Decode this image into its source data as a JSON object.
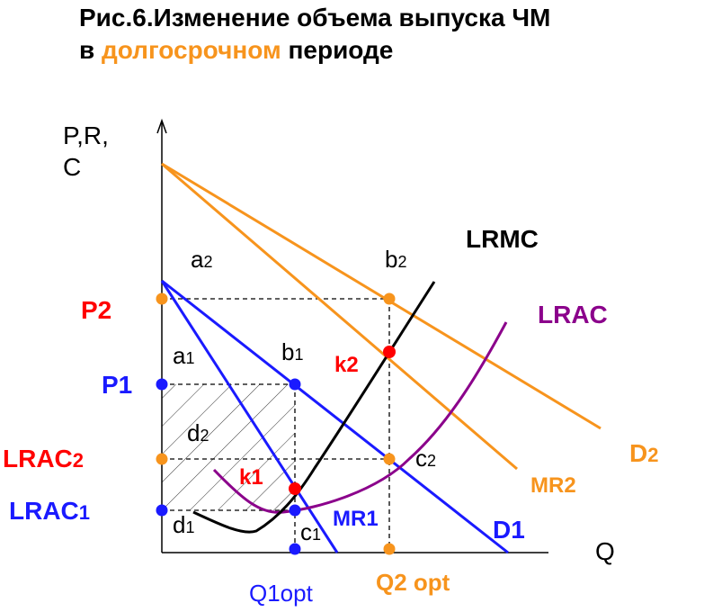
{
  "title": {
    "line1": "Рис.6.Изменение  объема выпуска ЧМ",
    "line2_prefix": "в ",
    "line2_accent": "долгосрочном",
    "line2_suffix": " периоде"
  },
  "axes": {
    "y_label_line1": "P,R,",
    "y_label_line2": "C",
    "x_label": "Q"
  },
  "price_labels": {
    "p2": "P2",
    "p1": "P1",
    "lrac2": "LRAC",
    "lrac2_sub": "2",
    "lrac1": "LRAC",
    "lrac1_sub": "1"
  },
  "curve_labels": {
    "lrmc": "LRMC",
    "lrac": "LRAC",
    "d2": "D",
    "d2_sub": "2",
    "mr2": "MR2",
    "mr1": "MR1",
    "d1": "D1"
  },
  "point_labels": {
    "a2": "a",
    "a2_sub": "2",
    "b2": "b",
    "b2_sub": "2",
    "a1": "a",
    "a1_sub": "1",
    "b1": "b",
    "b1_sub": "1",
    "d2": "d",
    "d2_sub": "2",
    "c2": "c",
    "c2_sub": "2",
    "d1": "d",
    "d1_sub": "1",
    "c1": "c",
    "c1_sub": "1",
    "k1": "k1",
    "k2": "k2"
  },
  "quantity_labels": {
    "q1": "Q1opt",
    "q2": "Q2 opt"
  },
  "colors": {
    "orange": "#f7941d",
    "blue": "#1a1aff",
    "purple": "#8b008b",
    "red": "#ff0000",
    "black": "#000000"
  }
}
